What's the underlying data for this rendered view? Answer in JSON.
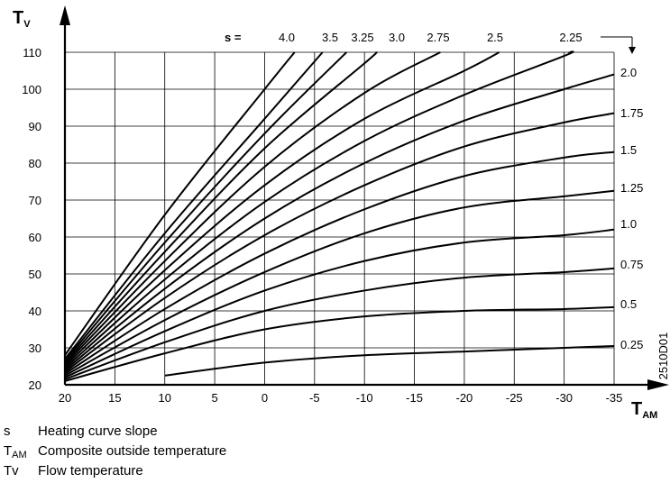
{
  "chart_data": {
    "type": "line",
    "y_axis": {
      "symbol": "T",
      "subscript": "V",
      "range": [
        20,
        110
      ],
      "ticks": [
        20,
        30,
        40,
        50,
        60,
        70,
        80,
        90,
        100,
        110
      ]
    },
    "x_axis": {
      "symbol": "T",
      "subscript": "AM",
      "range": [
        20,
        -35
      ],
      "ticks": [
        20,
        15,
        10,
        5,
        0,
        -5,
        -10,
        -15,
        -20,
        -25,
        -30,
        -35
      ]
    },
    "slope_header": "s   =",
    "top_slope_labels": [
      "4.0",
      "3.5",
      "3.25",
      "3.0",
      "2.75",
      "2.5",
      "2.25"
    ],
    "right_slope_labels": [
      "2.0",
      "1.75",
      "1.5",
      "1.25",
      "1.0",
      "0.75",
      "0.5",
      "0.25"
    ],
    "code": "2510D01",
    "grid": true,
    "series": [
      {
        "name": "4.0",
        "x": [
          20,
          10,
          0,
          -3
        ],
        "y": [
          28,
          66,
          100,
          110
        ]
      },
      {
        "name": "3.5",
        "x": [
          20,
          10,
          0,
          -5.8
        ],
        "y": [
          27,
          61,
          92,
          110
        ]
      },
      {
        "name": "3.25",
        "x": [
          20,
          10,
          0,
          -8.2
        ],
        "y": [
          26.5,
          58.5,
          88,
          110
        ]
      },
      {
        "name": "3.0",
        "x": [
          20,
          10,
          0,
          -10,
          -11.2
        ],
        "y": [
          26,
          56,
          84,
          107,
          110
        ]
      },
      {
        "name": "2.75",
        "x": [
          20,
          10,
          0,
          -10,
          -17.6
        ],
        "y": [
          25.5,
          53.5,
          79,
          99,
          110
        ]
      },
      {
        "name": "2.5",
        "x": [
          20,
          10,
          0,
          -10,
          -20,
          -23.5
        ],
        "y": [
          25,
          51,
          74,
          92,
          105,
          110
        ]
      },
      {
        "name": "2.25",
        "x": [
          20,
          10,
          0,
          -10,
          -20,
          -30,
          -30.5
        ],
        "y": [
          24.5,
          48.5,
          69.5,
          86,
          98.5,
          109,
          110
        ]
      },
      {
        "name": "2.0",
        "x": [
          20,
          10,
          0,
          -10,
          -20,
          -30,
          -35
        ],
        "y": [
          24,
          46,
          65,
          80,
          91.5,
          100,
          104
        ]
      },
      {
        "name": "1.75",
        "x": [
          20,
          10,
          0,
          -10,
          -20,
          -30,
          -35
        ],
        "y": [
          23.5,
          43.5,
          60.5,
          74,
          84.5,
          91,
          93.5
        ]
      },
      {
        "name": "1.5",
        "x": [
          20,
          10,
          0,
          -10,
          -20,
          -30,
          -35
        ],
        "y": [
          23,
          40.5,
          55.5,
          67.5,
          76.5,
          81.5,
          83
        ]
      },
      {
        "name": "1.25",
        "x": [
          20,
          10,
          0,
          -10,
          -20,
          -30,
          -35
        ],
        "y": [
          22.5,
          37.5,
          50.5,
          61,
          68,
          71,
          72.5
        ]
      },
      {
        "name": "1.0",
        "x": [
          20,
          10,
          0,
          -10,
          -20,
          -30,
          -35
        ],
        "y": [
          22,
          34.5,
          45.5,
          53.5,
          58.5,
          60.5,
          62
        ]
      },
      {
        "name": "0.75",
        "x": [
          20,
          10,
          0,
          -10,
          -20,
          -30,
          -35
        ],
        "y": [
          21.5,
          31.5,
          40,
          45.5,
          49,
          50.5,
          51.5
        ]
      },
      {
        "name": "0.5",
        "x": [
          20,
          10,
          0,
          -10,
          -20,
          -30,
          -35
        ],
        "y": [
          21,
          28.5,
          35,
          38.5,
          40,
          40.5,
          41
        ]
      },
      {
        "name": "0.25",
        "x": [
          10,
          0,
          -10,
          -20,
          -30,
          -35
        ],
        "y": [
          22.5,
          26,
          28,
          29,
          30,
          30.5
        ]
      }
    ]
  },
  "legend": [
    {
      "symbol": "s",
      "sub": "",
      "text": "Heating curve slope"
    },
    {
      "symbol": "T",
      "sub": "AM",
      "text": "Composite outside temperature"
    },
    {
      "symbol": "Tv",
      "sub": "",
      "text": "Flow temperature"
    }
  ]
}
